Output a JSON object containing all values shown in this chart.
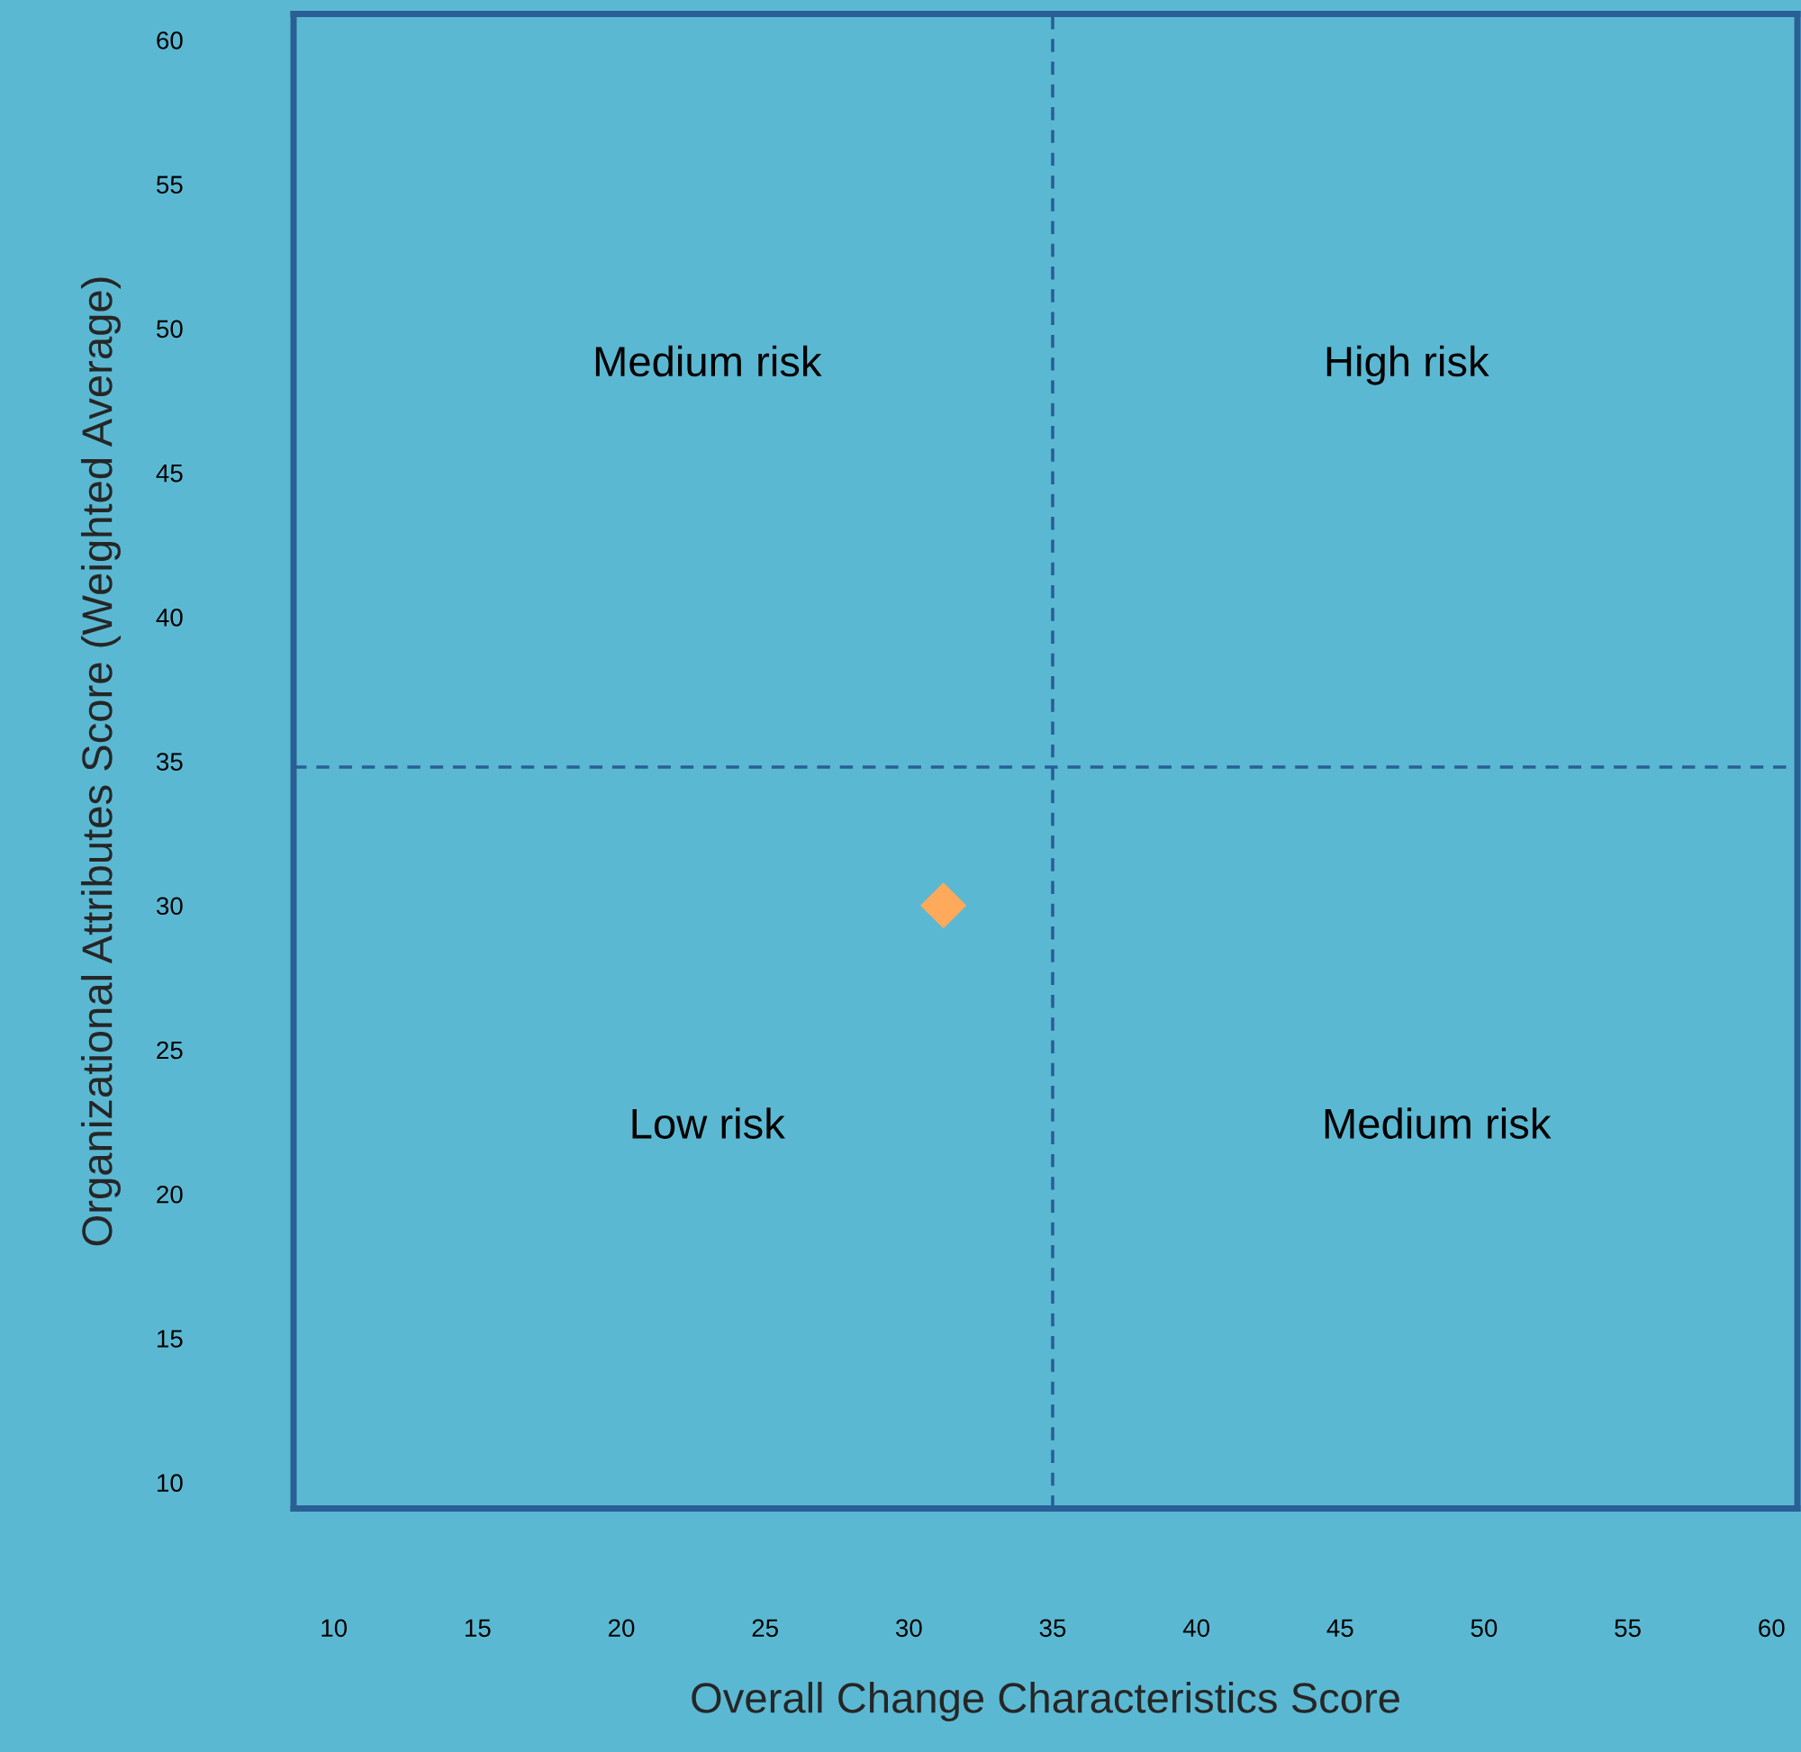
{
  "chart_data": {
    "type": "scatter",
    "xlabel": "Overall Change Characteristics Score",
    "ylabel": "Organizational Attributes Score (Weighted Average)",
    "series": [
      {
        "x": [
          31.2
        ],
        "values": [
          30
        ],
        "color": "#ffa95a"
      }
    ],
    "marker": "diamond",
    "xlim": [
      8.6,
      60.9
    ],
    "ylim": [
      9.1,
      60.9
    ],
    "xticks": [
      10,
      15,
      20,
      25,
      30,
      35,
      40,
      45,
      50,
      55,
      60
    ],
    "yticks": [
      10,
      15,
      20,
      25,
      30,
      35,
      40,
      45,
      50,
      55,
      60
    ],
    "ref_lines": [
      {
        "axis": "x",
        "value": 35,
        "line_style": "dashed"
      },
      {
        "axis": "y",
        "value": 34.8,
        "line_style": "dashed"
      }
    ],
    "annotations": [
      "Medium risk",
      "High risk",
      "Low risk",
      "Medium risk"
    ],
    "grid": false
  }
}
